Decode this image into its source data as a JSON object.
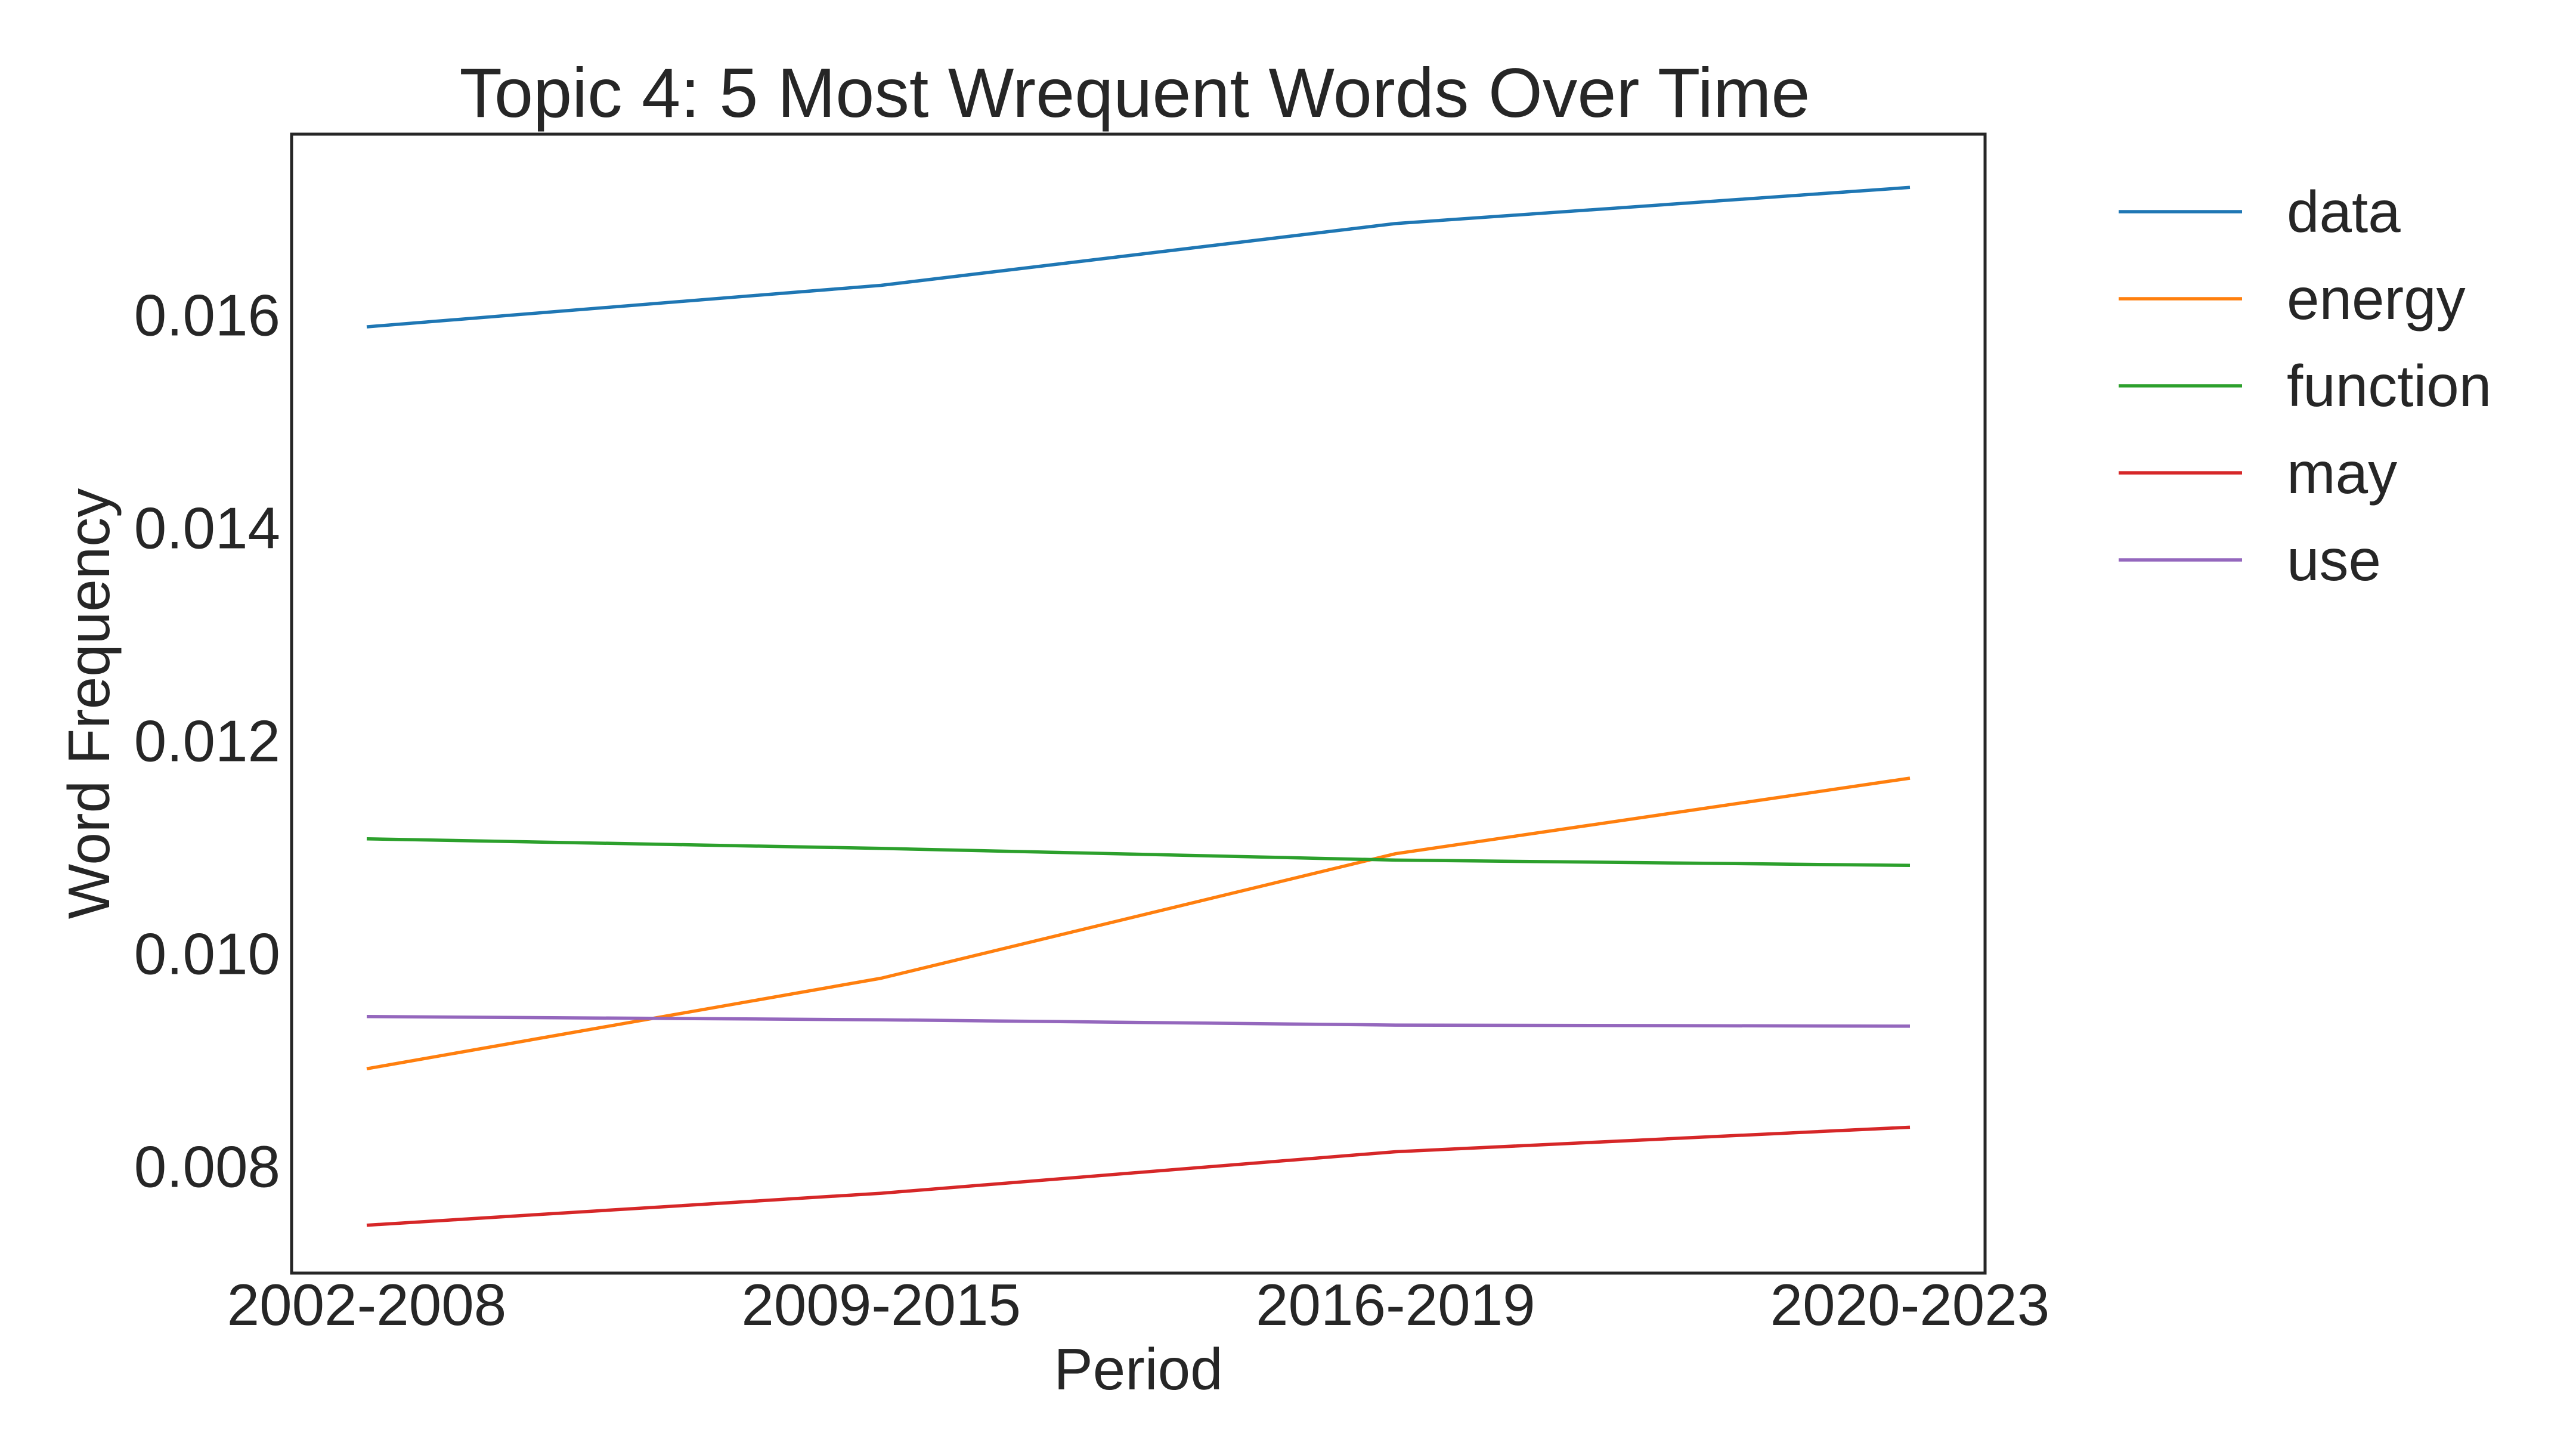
{
  "chart_data": {
    "type": "line",
    "title": "Topic 4: 5 Most Wrequent Words Over Time",
    "xlabel": "Period",
    "ylabel": "Word Frequency",
    "categories": [
      "2002-2008",
      "2009-2015",
      "2016-2019",
      "2020-2023"
    ],
    "ylim": [
      0.007,
      0.0177
    ],
    "yticks": [
      0.008,
      0.01,
      0.012,
      0.014,
      0.016
    ],
    "ytick_labels": [
      "0.008",
      "0.010",
      "0.012",
      "0.014",
      "0.016"
    ],
    "grid": false,
    "legend_position": "outside-top-right",
    "series": [
      {
        "name": "data",
        "color": "#1f77b4",
        "values": [
          0.01589,
          0.01628,
          0.01686,
          0.0172
        ]
      },
      {
        "name": "energy",
        "color": "#ff7f0e",
        "values": [
          0.00892,
          0.00977,
          0.01094,
          0.01165
        ]
      },
      {
        "name": "function",
        "color": "#2ca02c",
        "values": [
          0.01108,
          0.01099,
          0.01088,
          0.01083
        ]
      },
      {
        "name": "may",
        "color": "#d62728",
        "values": [
          0.00745,
          0.00775,
          0.00814,
          0.00837
        ]
      },
      {
        "name": "use",
        "color": "#9467bd",
        "values": [
          0.00941,
          0.00938,
          0.00933,
          0.00932
        ]
      }
    ]
  }
}
